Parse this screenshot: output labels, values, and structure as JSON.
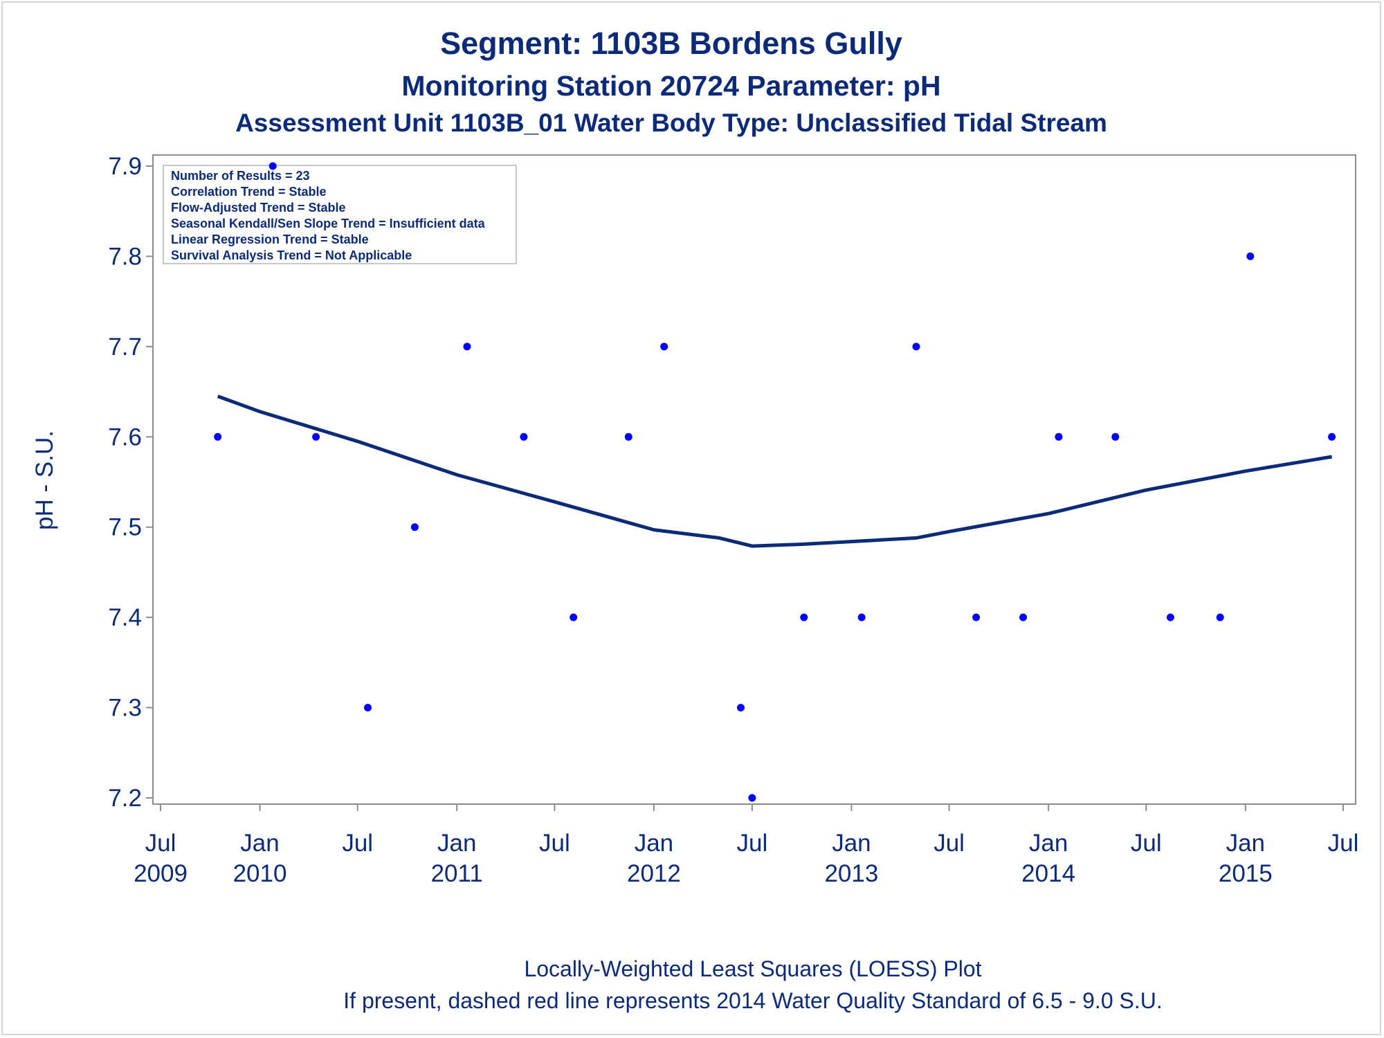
{
  "colors": {
    "text": "#0b2a78",
    "points": "#0000ff",
    "trend": "#0b2a78",
    "axis": "#8c8c8c",
    "inset_border": "#c8c8c8"
  },
  "chart_data": {
    "type": "scatter",
    "title": "Segment: 1103B  Bordens Gully",
    "subtitle": "Monitoring Station 20724 Parameter: pH",
    "subtitle2": "Assessment Unit 1103B_01   Water Body Type: Unclassified Tidal Stream",
    "ylabel": "pH - S.U.",
    "xlabel": "",
    "ylim": [
      7.2,
      7.9
    ],
    "xlim": [
      "2009-07-01",
      "2015-07-01"
    ],
    "y_ticks": [
      "7.2",
      "7.3",
      "7.4",
      "7.5",
      "7.6",
      "7.7",
      "7.8",
      "7.9"
    ],
    "x_ticks": [
      {
        "date": "2009-07-01",
        "month": "Jul",
        "year": "2009"
      },
      {
        "date": "2010-01-01",
        "month": "Jan",
        "year": "2010"
      },
      {
        "date": "2010-07-01",
        "month": "Jul",
        "year": ""
      },
      {
        "date": "2011-01-01",
        "month": "Jan",
        "year": "2011"
      },
      {
        "date": "2011-07-01",
        "month": "Jul",
        "year": ""
      },
      {
        "date": "2012-01-01",
        "month": "Jan",
        "year": "2012"
      },
      {
        "date": "2012-07-01",
        "month": "Jul",
        "year": ""
      },
      {
        "date": "2013-01-01",
        "month": "Jan",
        "year": "2013"
      },
      {
        "date": "2013-07-01",
        "month": "Jul",
        "year": ""
      },
      {
        "date": "2014-01-01",
        "month": "Jan",
        "year": "2014"
      },
      {
        "date": "2014-07-01",
        "month": "Jul",
        "year": ""
      },
      {
        "date": "2015-01-01",
        "month": "Jan",
        "year": "2015"
      },
      {
        "date": "2015-07-01",
        "month": "Jul",
        "year": ""
      }
    ],
    "grid": false,
    "points": [
      {
        "x": "2009-10-15",
        "y": 7.6
      },
      {
        "x": "2010-01-25",
        "y": 7.9
      },
      {
        "x": "2010-04-15",
        "y": 7.6
      },
      {
        "x": "2010-07-20",
        "y": 7.3
      },
      {
        "x": "2010-10-15",
        "y": 7.5
      },
      {
        "x": "2011-01-20",
        "y": 7.7
      },
      {
        "x": "2011-05-05",
        "y": 7.6
      },
      {
        "x": "2011-08-05",
        "y": 7.4
      },
      {
        "x": "2011-11-15",
        "y": 7.6
      },
      {
        "x": "2012-01-20",
        "y": 7.7
      },
      {
        "x": "2012-06-10",
        "y": 7.3
      },
      {
        "x": "2012-07-01",
        "y": 7.2
      },
      {
        "x": "2012-10-05",
        "y": 7.4
      },
      {
        "x": "2013-01-20",
        "y": 7.4
      },
      {
        "x": "2013-05-01",
        "y": 7.7
      },
      {
        "x": "2013-08-20",
        "y": 7.4
      },
      {
        "x": "2013-11-15",
        "y": 7.4
      },
      {
        "x": "2014-01-20",
        "y": 7.6
      },
      {
        "x": "2014-05-05",
        "y": 7.6
      },
      {
        "x": "2014-08-15",
        "y": 7.4
      },
      {
        "x": "2014-11-15",
        "y": 7.4
      },
      {
        "x": "2015-01-10",
        "y": 7.8
      },
      {
        "x": "2015-06-10",
        "y": 7.6
      }
    ],
    "loess": [
      {
        "x": "2009-10-15",
        "y": 7.645
      },
      {
        "x": "2010-01-01",
        "y": 7.628
      },
      {
        "x": "2010-07-01",
        "y": 7.595
      },
      {
        "x": "2011-01-01",
        "y": 7.558
      },
      {
        "x": "2011-07-01",
        "y": 7.528
      },
      {
        "x": "2012-01-01",
        "y": 7.497
      },
      {
        "x": "2012-05-01",
        "y": 7.488
      },
      {
        "x": "2012-07-01",
        "y": 7.479
      },
      {
        "x": "2012-10-01",
        "y": 7.481
      },
      {
        "x": "2013-01-01",
        "y": 7.484
      },
      {
        "x": "2013-05-01",
        "y": 7.488
      },
      {
        "x": "2013-07-01",
        "y": 7.495
      },
      {
        "x": "2014-01-01",
        "y": 7.515
      },
      {
        "x": "2014-07-01",
        "y": 7.541
      },
      {
        "x": "2015-01-01",
        "y": 7.562
      },
      {
        "x": "2015-06-10",
        "y": 7.578
      }
    ],
    "inset_lines": [
      "Number of Results = 23",
      "Correlation Trend = Stable",
      "Flow-Adjusted Trend = Stable",
      "Seasonal Kendall/Sen Slope Trend = Insufficient data",
      "Linear Regression Trend = Stable",
      "Survival Analysis Trend = Not Applicable"
    ],
    "inset_placement": "top-left",
    "footnotes": [
      "Locally-Weighted Least Squares (LOESS) Plot",
      "If present, dashed red line represents 2014 Water Quality Standard of 6.5 - 9.0 S.U."
    ]
  }
}
